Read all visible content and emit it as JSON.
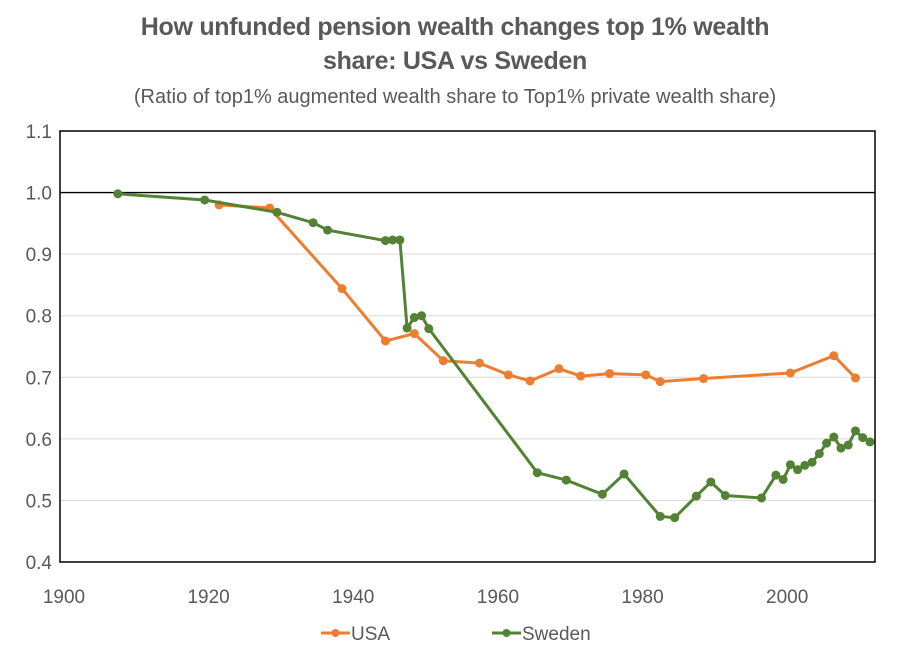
{
  "chart_data": {
    "type": "line",
    "title_line1": "How unfunded pension wealth changes top 1% wealth",
    "title_line2": "share: USA vs Sweden",
    "subtitle": "(Ratio of top1% augmented wealth share to Top1% private wealth share)",
    "xlabel": "",
    "ylabel": "",
    "xlim": [
      1900,
      2012.7
    ],
    "ylim": [
      0.4,
      1.1
    ],
    "x_ticks": [
      1900,
      1920,
      1940,
      1960,
      1980,
      2000
    ],
    "x_tick_labels": [
      "1900",
      "1920",
      "1940",
      "1960",
      "1980",
      "2000"
    ],
    "y_ticks": [
      0.4,
      0.5,
      0.6,
      0.7,
      0.8,
      0.9,
      1.0,
      1.1
    ],
    "y_tick_labels": [
      "0.4",
      "0.5",
      "0.6",
      "0.7",
      "0.8",
      "0.9",
      "1.0",
      "1.1"
    ],
    "reference_line": 1.0,
    "grid": true,
    "legend_position": "bottom",
    "series": [
      {
        "name": "USA",
        "color": "#ED7D31",
        "x": [
          1922,
          1929,
          1939,
          1945,
          1949,
          1953,
          1958,
          1962,
          1965,
          1969,
          1972,
          1976,
          1981,
          1983,
          1989,
          2001,
          2007,
          2010
        ],
        "y": [
          0.98,
          0.975,
          0.844,
          0.759,
          0.771,
          0.727,
          0.723,
          0.704,
          0.694,
          0.714,
          0.702,
          0.706,
          0.704,
          0.693,
          0.698,
          0.707,
          0.735,
          0.699
        ]
      },
      {
        "name": "Sweden",
        "color": "#548235",
        "x": [
          1908,
          1920,
          1930,
          1935,
          1937,
          1945,
          1946,
          1947,
          1948,
          1949,
          1950,
          1951,
          1966,
          1970,
          1975,
          1978,
          1983,
          1985,
          1988,
          1990,
          1992,
          1997,
          1999,
          2000,
          2001,
          2002,
          2003,
          2004,
          2005,
          2006,
          2007,
          2008,
          2009,
          2010,
          2011,
          2012
        ],
        "y": [
          0.998,
          0.988,
          0.968,
          0.951,
          0.939,
          0.922,
          0.923,
          0.923,
          0.78,
          0.797,
          0.8,
          0.779,
          0.545,
          0.533,
          0.51,
          0.543,
          0.474,
          0.472,
          0.507,
          0.53,
          0.508,
          0.504,
          0.541,
          0.534,
          0.558,
          0.55,
          0.557,
          0.562,
          0.576,
          0.593,
          0.603,
          0.585,
          0.59,
          0.613,
          0.602,
          0.595
        ]
      }
    ]
  }
}
